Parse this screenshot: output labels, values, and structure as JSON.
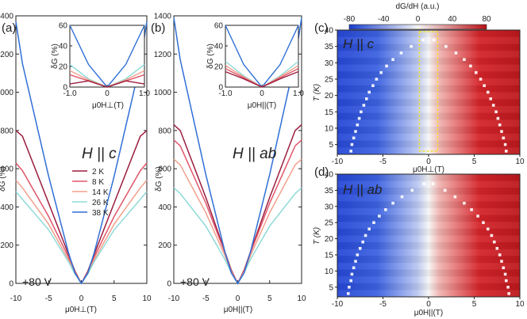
{
  "colors": {
    "2K": "#9b1d3d",
    "8K": "#e0566a",
    "14K": "#f2a08c",
    "26K": "#8edbd8",
    "38K": "#2f6fd6",
    "highlight": "#f2e236"
  },
  "chart_data": [
    {
      "id": "a",
      "type": "line",
      "panel_label": "(a)",
      "xlabel": "μ0H⊥(T)",
      "ylabel": "δG (%)",
      "xlim": [
        -10,
        10
      ],
      "ylim": [
        0,
        1400
      ],
      "xticks": [
        "-10",
        "-5",
        "0",
        "5",
        "10"
      ],
      "yticks": [
        "0",
        "200",
        "400",
        "600",
        "800",
        "1000",
        "1200",
        "1400"
      ],
      "annotation": "H || c",
      "gate": "+80 V",
      "series": [
        {
          "name": "2 K",
          "x": [
            -10,
            -9,
            -5,
            -2,
            -1,
            0,
            1,
            2,
            5,
            9,
            10
          ],
          "y": [
            800,
            770,
            420,
            155,
            65,
            0,
            65,
            155,
            420,
            770,
            800
          ]
        },
        {
          "name": "8 K",
          "x": [
            -10,
            -9,
            -5,
            -2,
            -1,
            0,
            1,
            2,
            5,
            9,
            10
          ],
          "y": [
            630,
            590,
            350,
            140,
            60,
            0,
            60,
            140,
            350,
            590,
            630
          ]
        },
        {
          "name": "14 K",
          "x": [
            -10,
            -9,
            -5,
            -2,
            -1,
            0,
            1,
            2,
            5,
            9,
            10
          ],
          "y": [
            540,
            500,
            310,
            125,
            55,
            0,
            55,
            125,
            310,
            500,
            540
          ]
        },
        {
          "name": "26 K",
          "x": [
            -10,
            -9,
            -5,
            -2,
            -1,
            0,
            1,
            2,
            5,
            9,
            10
          ],
          "y": [
            480,
            440,
            280,
            115,
            50,
            0,
            50,
            115,
            280,
            440,
            480
          ]
        },
        {
          "name": "38 K",
          "x": [
            -10,
            -9,
            -5,
            -2,
            -1,
            0,
            1,
            2,
            5,
            9,
            10
          ],
          "y": [
            1370,
            1150,
            560,
            165,
            55,
            0,
            55,
            165,
            560,
            1150,
            1370
          ]
        }
      ],
      "inset": {
        "xlabel": "μ0H⊥(T)",
        "ylabel": "δG (%)",
        "xlim": [
          -1,
          1
        ],
        "ylim": [
          0,
          60
        ],
        "xticks": [
          "-1.0",
          "0",
          "1.0"
        ],
        "yticks": [
          "0",
          "20",
          "40",
          "60"
        ],
        "series": [
          {
            "name": "38 K",
            "x": [
              -1,
              -0.5,
              0,
              0.5,
              1
            ],
            "y": [
              60,
              22,
              0,
              22,
              60
            ]
          },
          {
            "name": "26 K",
            "x": [
              -1,
              -0.5,
              0,
              0.5,
              1
            ],
            "y": [
              22,
              8,
              0,
              8,
              22
            ]
          },
          {
            "name": "14 K",
            "x": [
              -1,
              -0.5,
              0,
              0.5,
              1
            ],
            "y": [
              16,
              7,
              0,
              7,
              16
            ]
          },
          {
            "name": "8 K",
            "x": [
              -1,
              -0.5,
              0,
              0.5,
              1
            ],
            "y": [
              12,
              6,
              0,
              6,
              12
            ]
          },
          {
            "name": "2 K",
            "x": [
              -1,
              -0.5,
              0,
              0.5,
              1
            ],
            "y": [
              3,
              6,
              0,
              6,
              3
            ]
          }
        ]
      },
      "legend": [
        "2 K",
        "8 K",
        "14 K",
        "26 K",
        "38 K"
      ]
    },
    {
      "id": "b",
      "type": "line",
      "panel_label": "(b)",
      "xlabel": "μ0H||(T)",
      "ylabel": "δG (%)",
      "xlim": [
        -10,
        10
      ],
      "ylim": [
        0,
        1400
      ],
      "xticks": [
        "-10",
        "-5",
        "0",
        "5",
        "10"
      ],
      "yticks": [
        "0",
        "200",
        "400",
        "600",
        "800",
        "1000",
        "1200",
        "1400"
      ],
      "annotation": "H || ab",
      "gate": "+80 V",
      "series": [
        {
          "name": "2 K",
          "x": [
            -10,
            -9,
            -5,
            -2,
            -1,
            0,
            1,
            2,
            5,
            9,
            10
          ],
          "y": [
            830,
            800,
            450,
            165,
            70,
            0,
            70,
            165,
            450,
            800,
            830
          ]
        },
        {
          "name": "8 K",
          "x": [
            -10,
            -9,
            -5,
            -2,
            -1,
            0,
            1,
            2,
            5,
            9,
            10
          ],
          "y": [
            750,
            720,
            420,
            160,
            65,
            0,
            65,
            160,
            420,
            720,
            750
          ]
        },
        {
          "name": "14 K",
          "x": [
            -10,
            -9,
            -5,
            -2,
            -1,
            0,
            1,
            2,
            5,
            9,
            10
          ],
          "y": [
            650,
            620,
            370,
            145,
            60,
            0,
            60,
            145,
            370,
            620,
            650
          ]
        },
        {
          "name": "26 K",
          "x": [
            -10,
            -9,
            -5,
            -2,
            -1,
            0,
            1,
            2,
            5,
            9,
            10
          ],
          "y": [
            500,
            470,
            300,
            125,
            55,
            0,
            55,
            125,
            300,
            470,
            500
          ]
        },
        {
          "name": "38 K",
          "x": [
            -10,
            -9,
            -5,
            -2,
            -1,
            0,
            1,
            2,
            5,
            9,
            10
          ],
          "y": [
            1390,
            1170,
            570,
            165,
            55,
            0,
            55,
            165,
            570,
            1170,
            1390
          ]
        }
      ],
      "inset": {
        "xlabel": "μ0H||(T)",
        "ylabel": "δG (%)",
        "xlim": [
          -1,
          1
        ],
        "ylim": [
          0,
          60
        ],
        "xticks": [
          "-1.0",
          "0",
          "1.0"
        ],
        "yticks": [
          "0",
          "20",
          "40",
          "60"
        ],
        "series": [
          {
            "name": "38 K",
            "x": [
              -1,
              -0.5,
              0,
              0.5,
              1
            ],
            "y": [
              60,
              22,
              0,
              22,
              60
            ]
          },
          {
            "name": "26 K",
            "x": [
              -1,
              -0.5,
              0,
              0.5,
              1
            ],
            "y": [
              25,
              11,
              0,
              11,
              25
            ]
          },
          {
            "name": "14 K",
            "x": [
              -1,
              -0.5,
              0,
              0.5,
              1
            ],
            "y": [
              21,
              10,
              0,
              10,
              21
            ]
          },
          {
            "name": "8 K",
            "x": [
              -1,
              -0.5,
              0,
              0.5,
              1
            ],
            "y": [
              18,
              9,
              0,
              9,
              18
            ]
          },
          {
            "name": "2 K",
            "x": [
              -1,
              -0.5,
              0,
              0.5,
              1
            ],
            "y": [
              15,
              8,
              0,
              8,
              15
            ]
          }
        ]
      }
    },
    {
      "id": "c",
      "type": "heatmap",
      "panel_label": "(c)",
      "xlabel": "μ0H⊥(T)",
      "ylabel": "T (K)",
      "xlim": [
        -10,
        10
      ],
      "ylim": [
        2,
        40
      ],
      "xticks": [
        "-10",
        "-5",
        "0",
        "5",
        "10"
      ],
      "yticks": [
        "5",
        "10",
        "15",
        "20",
        "25",
        "30",
        "35",
        "40"
      ],
      "annotation": "H || c",
      "colorbar": {
        "label": "dG/dH (a.u.)",
        "range": [
          -80,
          80
        ],
        "ticks": [
          "-80",
          "-40",
          "0",
          "40",
          "80"
        ]
      },
      "highlight_box_x": [
        -1,
        1
      ],
      "markers_T": [
        3,
        5,
        7,
        9,
        11,
        13,
        15,
        17,
        19,
        21,
        23,
        25,
        27,
        29,
        31,
        33,
        35,
        37
      ],
      "markers_H": [
        8.5,
        8.4,
        8.2,
        8.0,
        7.8,
        7.6,
        7.4,
        7.1,
        6.8,
        6.5,
        6.1,
        5.7,
        5.2,
        4.6,
        3.9,
        3.0,
        1.9,
        0.6
      ]
    },
    {
      "id": "d",
      "type": "heatmap",
      "panel_label": "(d)",
      "xlabel": "μ0H||(T)",
      "ylabel": "T (K)",
      "xlim": [
        -10,
        10
      ],
      "ylim": [
        2,
        40
      ],
      "xticks": [
        "-10",
        "-5",
        "0",
        "5",
        "10"
      ],
      "yticks": [
        "5",
        "10",
        "15",
        "20",
        "25",
        "30",
        "35",
        "40"
      ],
      "annotation": "H || ab",
      "markers_T": [
        3,
        5,
        7,
        9,
        11,
        13,
        15,
        17,
        19,
        21,
        23,
        25,
        27,
        29,
        31,
        33,
        35,
        37
      ],
      "markers_H": [
        8.8,
        8.7,
        8.5,
        8.4,
        8.2,
        8.0,
        7.8,
        7.5,
        7.2,
        6.9,
        6.5,
        6.0,
        5.4,
        4.7,
        3.9,
        2.9,
        1.8,
        0.5
      ]
    }
  ]
}
